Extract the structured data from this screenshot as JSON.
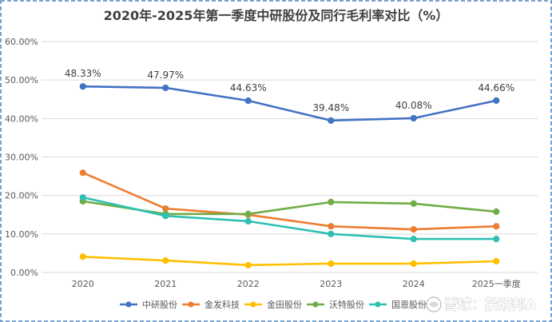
{
  "chart_data": {
    "type": "line",
    "title": "2020年-2025年第一季度中研股份及同行毛利率对比（%）",
    "categories": [
      "2020",
      "2021",
      "2022",
      "2023",
      "2024",
      "2025一季度"
    ],
    "ylim": [
      0,
      60
    ],
    "y_ticks": [
      0,
      10,
      20,
      30,
      40,
      50,
      60
    ],
    "y_tick_labels": [
      "0.00%",
      "10.00%",
      "20.00%",
      "30.00%",
      "40.00%",
      "50.00%",
      "60.00%"
    ],
    "grid": true,
    "legend_position": "bottom",
    "series": [
      {
        "name": "中研股份",
        "color": "#4472C4",
        "values": [
          48.33,
          47.97,
          44.63,
          39.48,
          40.08,
          44.66
        ],
        "labels": [
          "48.33%",
          "47.97%",
          "44.63%",
          "39.48%",
          "40.08%",
          "44.66%"
        ]
      },
      {
        "name": "金发科技",
        "color": "#ED7D31",
        "values": [
          25.9,
          16.6,
          15.0,
          12.0,
          11.2,
          12.0
        ]
      },
      {
        "name": "金田股份",
        "color": "#FFC000",
        "values": [
          4.1,
          3.1,
          1.9,
          2.3,
          2.3,
          2.9
        ]
      },
      {
        "name": "沃特股份",
        "color": "#70AD47",
        "values": [
          18.5,
          15.2,
          15.2,
          18.3,
          17.9,
          15.8
        ]
      },
      {
        "name": "国恩股份",
        "color": "#2EC0B4",
        "values": [
          19.5,
          14.7,
          13.3,
          10.0,
          8.7,
          8.7
        ]
      }
    ]
  },
  "border_color": "#4F81BD",
  "watermark": "雪球：投研邦A",
  "watermark_icon": "snowball-logo-icon"
}
